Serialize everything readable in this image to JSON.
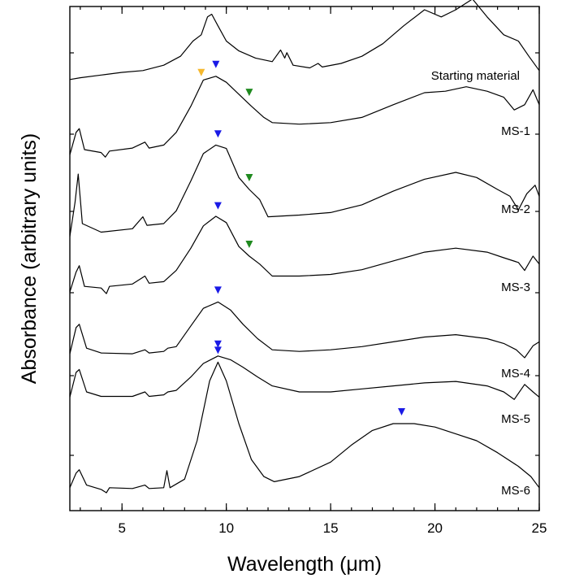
{
  "chart_data": {
    "type": "line",
    "title": "",
    "xlabel": "Wavelength (μm)",
    "ylabel": "Absorbance (arbitrary units)",
    "xlim": [
      2.5,
      25
    ],
    "x_ticks": [
      5,
      10,
      15,
      20,
      25
    ],
    "x_tick_labels": [
      "5",
      "10",
      "15",
      "20",
      "25"
    ],
    "x_minor_step": 1,
    "y_tick_labels": false,
    "grid": false,
    "legend": "none",
    "trace_color": "#000000",
    "series": [
      {
        "name": "Starting material",
        "baseline": 0.0,
        "points": [
          [
            2.5,
            0.02
          ],
          [
            3.0,
            0.04
          ],
          [
            4.0,
            0.07
          ],
          [
            5.0,
            0.1
          ],
          [
            6.0,
            0.12
          ],
          [
            7.0,
            0.18
          ],
          [
            7.8,
            0.28
          ],
          [
            8.4,
            0.45
          ],
          [
            8.8,
            0.52
          ],
          [
            9.1,
            0.72
          ],
          [
            9.3,
            0.75
          ],
          [
            9.6,
            0.62
          ],
          [
            10.0,
            0.45
          ],
          [
            10.6,
            0.34
          ],
          [
            11.4,
            0.26
          ],
          [
            12.2,
            0.22
          ],
          [
            12.6,
            0.35
          ],
          [
            12.8,
            0.26
          ],
          [
            12.9,
            0.32
          ],
          [
            13.2,
            0.18
          ],
          [
            14.0,
            0.15
          ],
          [
            14.4,
            0.2
          ],
          [
            14.6,
            0.16
          ],
          [
            15.5,
            0.2
          ],
          [
            16.5,
            0.28
          ],
          [
            17.5,
            0.42
          ],
          [
            18.5,
            0.62
          ],
          [
            19.5,
            0.8
          ],
          [
            20.3,
            0.72
          ],
          [
            21.0,
            0.8
          ],
          [
            21.8,
            0.92
          ],
          [
            22.5,
            0.72
          ],
          [
            23.3,
            0.52
          ],
          [
            24.0,
            0.45
          ],
          [
            24.5,
            0.28
          ],
          [
            25.0,
            0.12
          ]
        ]
      },
      {
        "name": "MS-1",
        "baseline": 1.0,
        "points": [
          [
            2.5,
            0.05
          ],
          [
            2.8,
            0.35
          ],
          [
            2.95,
            0.4
          ],
          [
            3.2,
            0.12
          ],
          [
            4.0,
            0.08
          ],
          [
            4.2,
            0.02
          ],
          [
            4.4,
            0.1
          ],
          [
            5.5,
            0.14
          ],
          [
            6.1,
            0.22
          ],
          [
            6.3,
            0.14
          ],
          [
            7.0,
            0.18
          ],
          [
            7.6,
            0.35
          ],
          [
            8.3,
            0.7
          ],
          [
            8.9,
            1.05
          ],
          [
            9.5,
            1.1
          ],
          [
            10.0,
            1.02
          ],
          [
            10.6,
            0.86
          ],
          [
            11.2,
            0.7
          ],
          [
            11.8,
            0.55
          ],
          [
            12.2,
            0.48
          ],
          [
            13.5,
            0.46
          ],
          [
            15.0,
            0.48
          ],
          [
            16.5,
            0.55
          ],
          [
            18.0,
            0.72
          ],
          [
            19.5,
            0.88
          ],
          [
            20.5,
            0.9
          ],
          [
            21.5,
            0.96
          ],
          [
            22.5,
            0.9
          ],
          [
            23.3,
            0.82
          ],
          [
            23.8,
            0.65
          ],
          [
            24.3,
            0.72
          ],
          [
            24.7,
            0.92
          ],
          [
            25.0,
            0.72
          ]
        ]
      },
      {
        "name": "MS-2",
        "baseline": 2.0,
        "points": [
          [
            2.5,
            0.05
          ],
          [
            2.75,
            0.45
          ],
          [
            2.9,
            0.78
          ],
          [
            3.1,
            0.2
          ],
          [
            4.0,
            0.1
          ],
          [
            5.5,
            0.14
          ],
          [
            6.0,
            0.28
          ],
          [
            6.2,
            0.18
          ],
          [
            7.0,
            0.2
          ],
          [
            7.6,
            0.35
          ],
          [
            8.3,
            0.7
          ],
          [
            8.9,
            1.02
          ],
          [
            9.5,
            1.12
          ],
          [
            10.0,
            1.08
          ],
          [
            10.6,
            0.74
          ],
          [
            11.1,
            0.6
          ],
          [
            11.6,
            0.48
          ],
          [
            12.0,
            0.28
          ],
          [
            13.5,
            0.3
          ],
          [
            15.0,
            0.33
          ],
          [
            16.5,
            0.42
          ],
          [
            18.0,
            0.58
          ],
          [
            19.5,
            0.72
          ],
          [
            21.0,
            0.8
          ],
          [
            22.0,
            0.74
          ],
          [
            23.0,
            0.6
          ],
          [
            23.6,
            0.52
          ],
          [
            24.0,
            0.36
          ],
          [
            24.4,
            0.55
          ],
          [
            24.8,
            0.65
          ],
          [
            25.0,
            0.52
          ]
        ]
      },
      {
        "name": "MS-3",
        "baseline": 3.0,
        "points": [
          [
            2.5,
            0.05
          ],
          [
            2.8,
            0.3
          ],
          [
            2.95,
            0.38
          ],
          [
            3.2,
            0.12
          ],
          [
            4.0,
            0.1
          ],
          [
            4.25,
            0.03
          ],
          [
            4.4,
            0.12
          ],
          [
            5.5,
            0.15
          ],
          [
            6.1,
            0.25
          ],
          [
            6.3,
            0.16
          ],
          [
            7.0,
            0.18
          ],
          [
            7.6,
            0.32
          ],
          [
            8.3,
            0.6
          ],
          [
            8.9,
            0.88
          ],
          [
            9.5,
            1.0
          ],
          [
            10.0,
            0.92
          ],
          [
            10.6,
            0.62
          ],
          [
            11.1,
            0.5
          ],
          [
            11.6,
            0.4
          ],
          [
            12.2,
            0.25
          ],
          [
            13.5,
            0.25
          ],
          [
            15.0,
            0.27
          ],
          [
            16.5,
            0.33
          ],
          [
            18.0,
            0.44
          ],
          [
            19.5,
            0.55
          ],
          [
            21.0,
            0.6
          ],
          [
            22.5,
            0.55
          ],
          [
            23.3,
            0.48
          ],
          [
            24.0,
            0.42
          ],
          [
            24.3,
            0.32
          ],
          [
            24.7,
            0.5
          ],
          [
            25.0,
            0.4
          ]
        ]
      },
      {
        "name": "MS-4",
        "baseline": 4.0,
        "points": [
          [
            2.5,
            0.05
          ],
          [
            2.8,
            0.38
          ],
          [
            2.95,
            0.42
          ],
          [
            3.3,
            0.12
          ],
          [
            4.0,
            0.06
          ],
          [
            5.5,
            0.05
          ],
          [
            6.1,
            0.1
          ],
          [
            6.3,
            0.06
          ],
          [
            7.0,
            0.08
          ],
          [
            7.2,
            0.12
          ],
          [
            7.6,
            0.14
          ],
          [
            8.3,
            0.4
          ],
          [
            8.9,
            0.62
          ],
          [
            9.6,
            0.7
          ],
          [
            10.2,
            0.6
          ],
          [
            10.8,
            0.42
          ],
          [
            11.5,
            0.24
          ],
          [
            12.2,
            0.1
          ],
          [
            13.5,
            0.08
          ],
          [
            15.0,
            0.1
          ],
          [
            16.5,
            0.14
          ],
          [
            18.0,
            0.2
          ],
          [
            19.5,
            0.26
          ],
          [
            21.0,
            0.29
          ],
          [
            22.5,
            0.24
          ],
          [
            23.3,
            0.18
          ],
          [
            23.9,
            0.1
          ],
          [
            24.3,
            0.0
          ],
          [
            24.7,
            0.15
          ],
          [
            25.0,
            0.2
          ]
        ]
      },
      {
        "name": "MS-5",
        "baseline": 5.0,
        "points": [
          [
            2.5,
            0.05
          ],
          [
            2.8,
            0.38
          ],
          [
            2.95,
            0.42
          ],
          [
            3.3,
            0.12
          ],
          [
            4.0,
            0.06
          ],
          [
            5.5,
            0.06
          ],
          [
            6.1,
            0.12
          ],
          [
            6.3,
            0.06
          ],
          [
            7.0,
            0.08
          ],
          [
            7.2,
            0.12
          ],
          [
            7.6,
            0.14
          ],
          [
            8.3,
            0.32
          ],
          [
            8.9,
            0.5
          ],
          [
            9.6,
            0.6
          ],
          [
            10.2,
            0.55
          ],
          [
            10.8,
            0.45
          ],
          [
            11.5,
            0.32
          ],
          [
            12.2,
            0.2
          ],
          [
            13.5,
            0.12
          ],
          [
            15.0,
            0.12
          ],
          [
            16.5,
            0.16
          ],
          [
            18.0,
            0.2
          ],
          [
            19.5,
            0.24
          ],
          [
            21.0,
            0.26
          ],
          [
            22.5,
            0.2
          ],
          [
            23.3,
            0.12
          ],
          [
            23.8,
            0.02
          ],
          [
            24.3,
            0.22
          ],
          [
            24.7,
            0.12
          ],
          [
            25.0,
            0.05
          ]
        ]
      },
      {
        "name": "MS-6",
        "baseline": 6.0,
        "points": [
          [
            2.5,
            0.05
          ],
          [
            2.8,
            0.22
          ],
          [
            2.95,
            0.26
          ],
          [
            3.3,
            0.08
          ],
          [
            4.0,
            0.03
          ],
          [
            4.25,
            -0.01
          ],
          [
            4.4,
            0.05
          ],
          [
            5.5,
            0.04
          ],
          [
            6.1,
            0.08
          ],
          [
            6.3,
            0.04
          ],
          [
            7.0,
            0.05
          ],
          [
            7.15,
            0.25
          ],
          [
            7.3,
            0.05
          ],
          [
            8.0,
            0.15
          ],
          [
            8.6,
            0.6
          ],
          [
            9.2,
            1.3
          ],
          [
            9.6,
            1.52
          ],
          [
            10.0,
            1.3
          ],
          [
            10.6,
            0.8
          ],
          [
            11.2,
            0.38
          ],
          [
            11.8,
            0.18
          ],
          [
            12.3,
            0.12
          ],
          [
            13.5,
            0.18
          ],
          [
            15.0,
            0.35
          ],
          [
            16.0,
            0.55
          ],
          [
            17.0,
            0.72
          ],
          [
            18.0,
            0.8
          ],
          [
            19.0,
            0.8
          ],
          [
            20.0,
            0.76
          ],
          [
            21.0,
            0.68
          ],
          [
            22.0,
            0.6
          ],
          [
            23.0,
            0.46
          ],
          [
            24.0,
            0.3
          ],
          [
            24.6,
            0.18
          ],
          [
            25.0,
            0.05
          ]
        ]
      }
    ],
    "markers": [
      {
        "series": "MS-1",
        "x": 8.8,
        "color": "#f5b82e"
      },
      {
        "series": "MS-1",
        "x": 9.5,
        "color": "#1a1ae6"
      },
      {
        "series": "MS-1",
        "x": 11.1,
        "color": "#1f8a1f"
      },
      {
        "series": "MS-2",
        "x": 9.6,
        "color": "#1a1ae6"
      },
      {
        "series": "MS-2",
        "x": 11.1,
        "color": "#1f8a1f"
      },
      {
        "series": "MS-3",
        "x": 9.6,
        "color": "#1a1ae6"
      },
      {
        "series": "MS-3",
        "x": 11.1,
        "color": "#1f8a1f"
      },
      {
        "series": "MS-4",
        "x": 9.6,
        "color": "#1a1ae6"
      },
      {
        "series": "MS-5",
        "x": 9.6,
        "color": "#1a1ae6"
      },
      {
        "series": "MS-6",
        "x": 9.6,
        "color": "#1a1ae6"
      },
      {
        "series": "MS-6",
        "x": 18.4,
        "color": "#1a1ae6"
      }
    ]
  }
}
